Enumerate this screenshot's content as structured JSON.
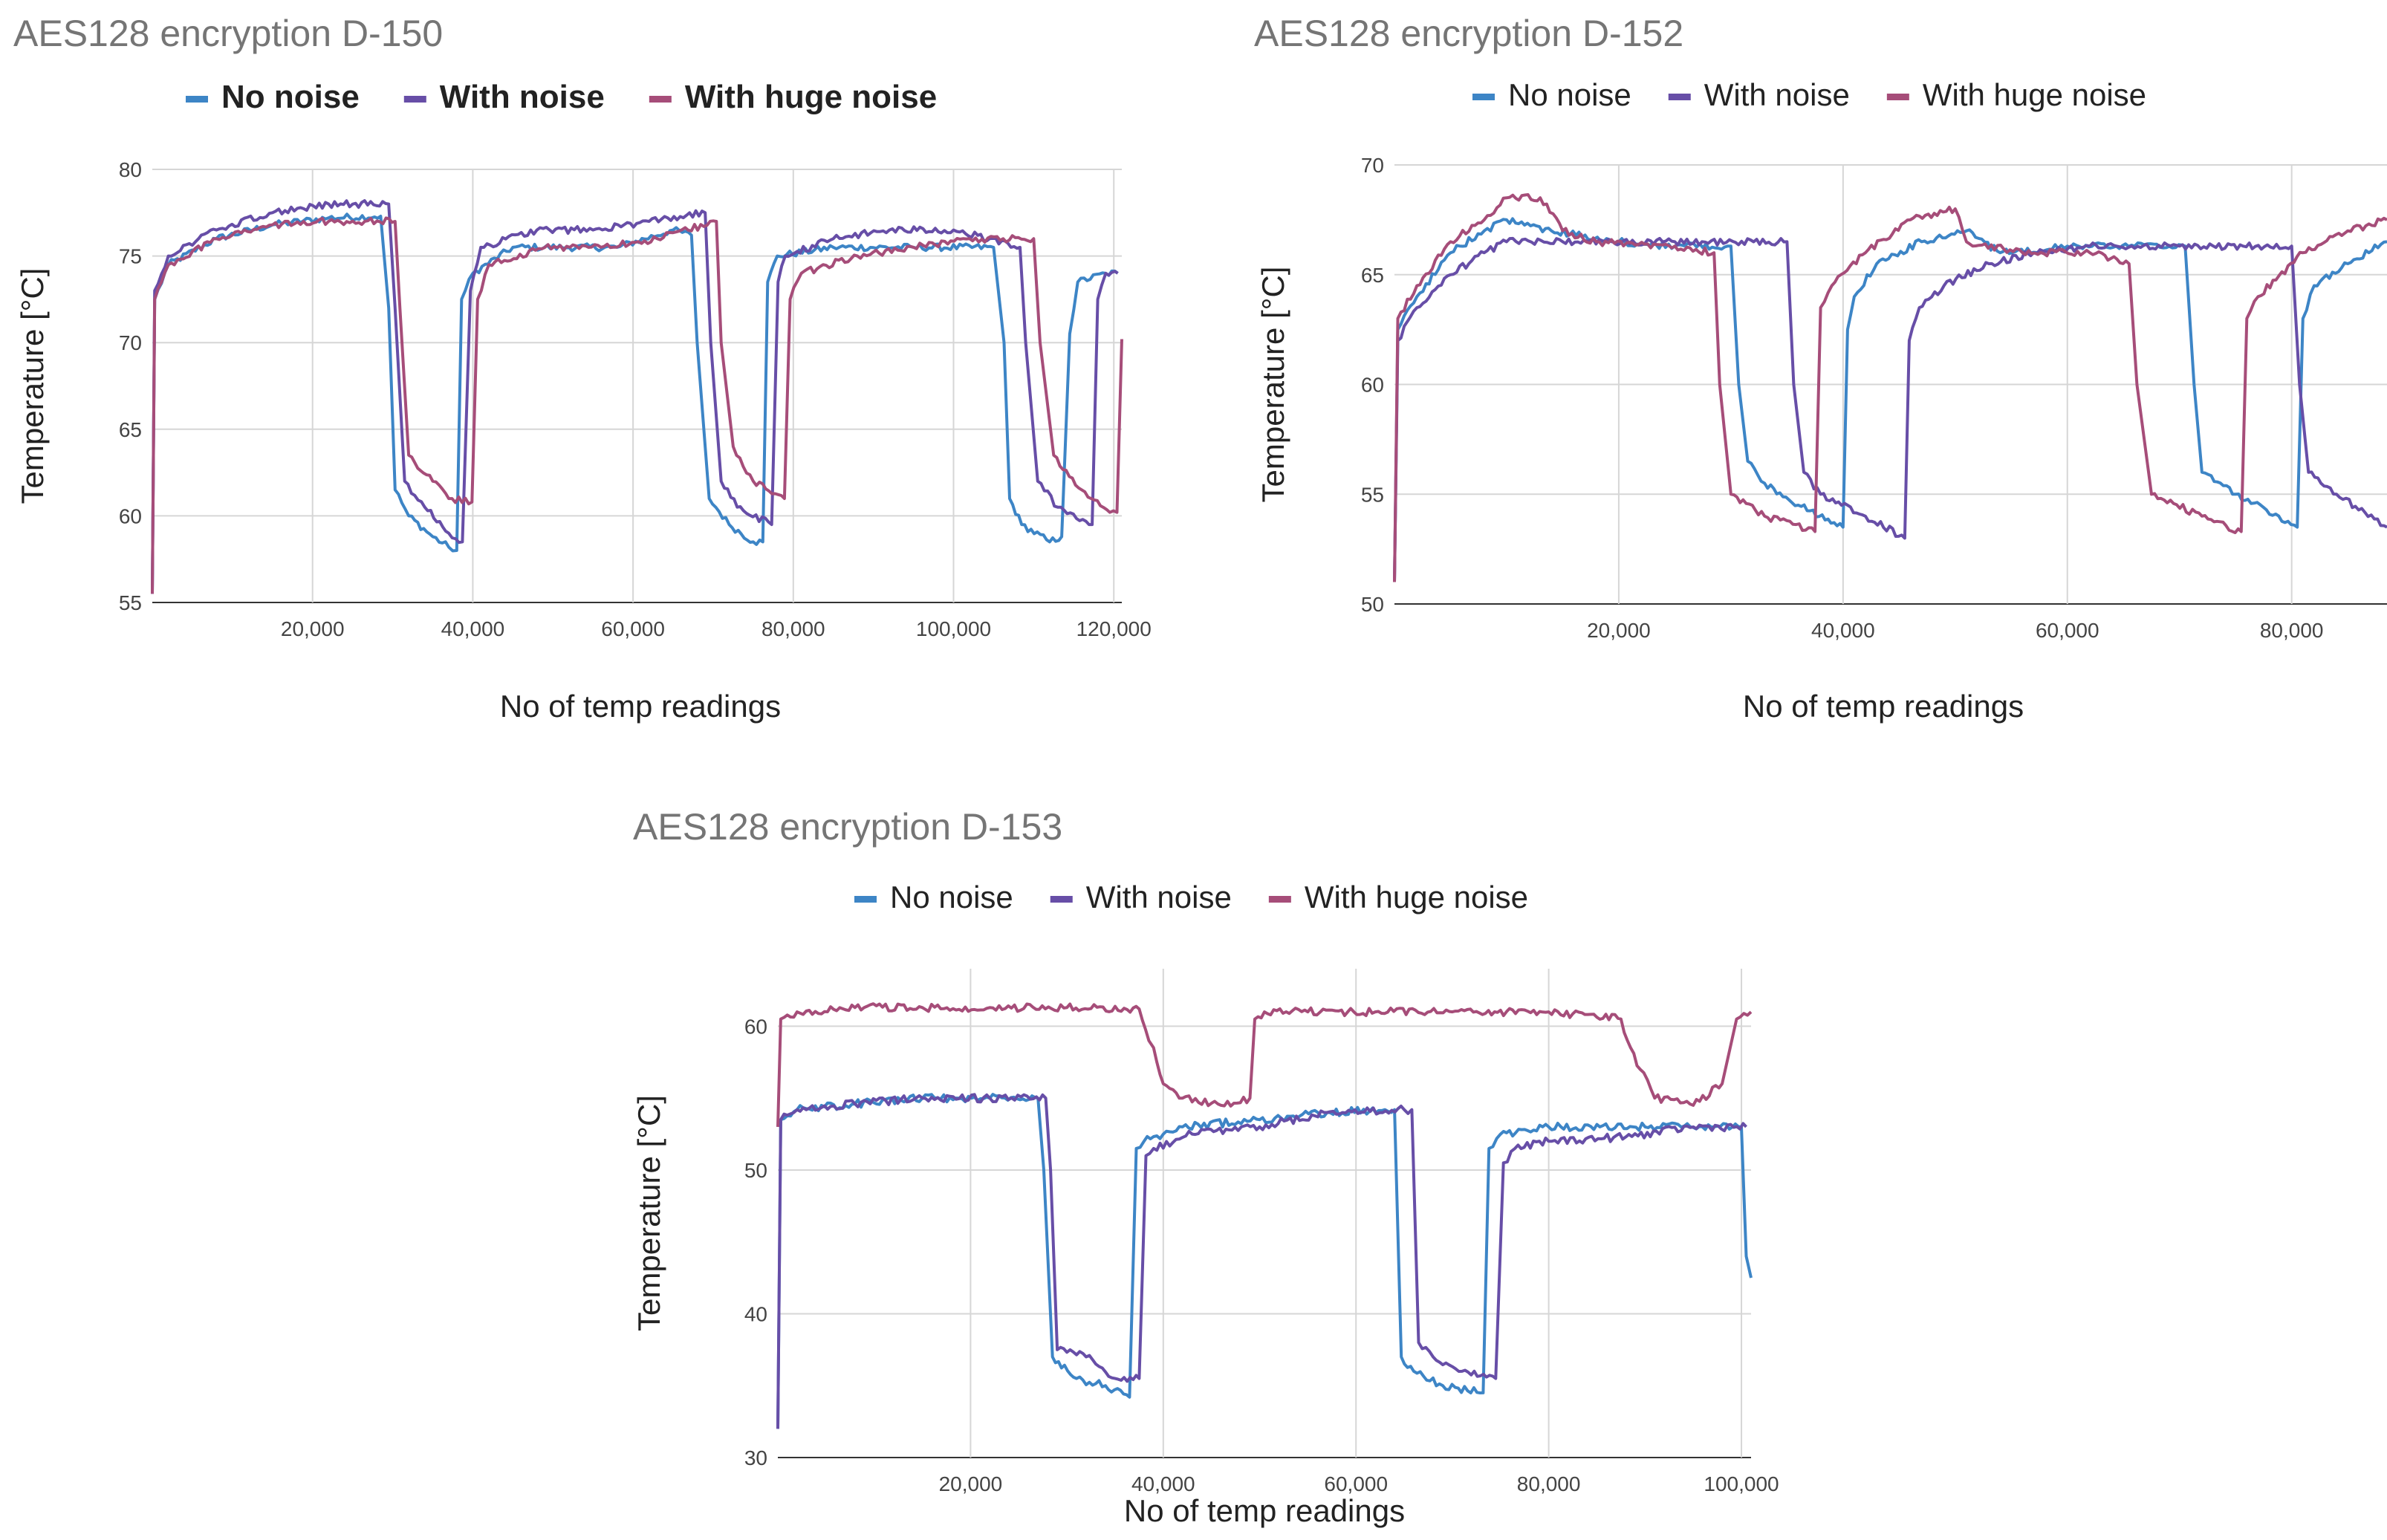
{
  "chart_data": [
    {
      "type": "line",
      "title": "AES128 encryption D-150",
      "xlabel": "No of temp readings",
      "ylabel": "Temperature [°C]",
      "legend_position": "top",
      "legend_bold": true,
      "xlim": [
        0,
        121000
      ],
      "ylim": [
        55,
        80
      ],
      "xticks": [
        20000,
        40000,
        60000,
        80000,
        100000,
        120000
      ],
      "xtick_labels": [
        "20,000",
        "40,000",
        "60,000",
        "80,000",
        "100,000",
        "120,000"
      ],
      "yticks": [
        55,
        60,
        65,
        70,
        75,
        80
      ],
      "ytick_labels": [
        "55",
        "60",
        "65",
        "70",
        "75",
        "80"
      ],
      "series": [
        {
          "name": "No noise",
          "color": "#3d85c6",
          "x": [
            0,
            300,
            2000,
            8000,
            15000,
            22000,
            28500,
            29500,
            30300,
            32000,
            35000,
            37000,
            38000,
            38600,
            40000,
            45000,
            52000,
            58000,
            65000,
            67300,
            68000,
            69500,
            72000,
            75000,
            76200,
            76800,
            78000,
            85000,
            95000,
            105000,
            106300,
            107000,
            108500,
            112000,
            113500,
            114500,
            115500,
            119000,
            120500
          ],
          "y": [
            55.5,
            72.5,
            74.5,
            76,
            76.8,
            77.2,
            77.3,
            72,
            61.5,
            60,
            58.8,
            58.2,
            58,
            72.5,
            74,
            75.5,
            75.5,
            75.5,
            76.5,
            76.2,
            70,
            61,
            59.5,
            58.5,
            58.5,
            73.5,
            75,
            75.5,
            75.5,
            75.5,
            70,
            61,
            59.5,
            58.5,
            58.8,
            70.5,
            73.5,
            74,
            74
          ]
        },
        {
          "name": "With noise",
          "color": "#674ea7",
          "x": [
            0,
            300,
            2000,
            8000,
            15000,
            22000,
            29500,
            30300,
            31500,
            34000,
            37000,
            38700,
            39700,
            41000,
            48000,
            55000,
            62000,
            69000,
            69700,
            71000,
            73000,
            77300,
            78100,
            79000,
            85000,
            92000,
            100000,
            108300,
            109000,
            110500,
            113000,
            117300,
            118000,
            119000,
            120500
          ],
          "y": [
            55.5,
            73,
            75,
            76.5,
            77.5,
            78,
            78,
            72,
            62,
            60.5,
            59,
            58.5,
            73,
            75.5,
            76.5,
            76.5,
            77,
            77.5,
            70,
            62,
            60.5,
            59.5,
            73.5,
            75,
            76,
            76.5,
            76.5,
            75.5,
            70,
            62,
            60.5,
            59.5,
            72.5,
            74,
            74
          ]
        },
        {
          "name": "With huge noise",
          "color": "#a64d79",
          "x": [
            0,
            300,
            2000,
            8000,
            15000,
            22000,
            30300,
            30900,
            32000,
            35000,
            37000,
            39900,
            40600,
            42000,
            49000,
            56000,
            63000,
            70400,
            71000,
            72500,
            75000,
            78900,
            79600,
            81000,
            88000,
            95000,
            102000,
            110000,
            110800,
            112500,
            116000,
            119500,
            120400,
            121000
          ],
          "y": [
            55.5,
            72.5,
            74.5,
            76,
            76.8,
            77,
            77,
            72,
            63.5,
            62,
            61,
            60.8,
            72.5,
            74.5,
            75.5,
            75.5,
            76,
            77,
            70,
            64,
            62,
            61,
            72.5,
            74,
            75,
            75.5,
            76,
            76,
            70,
            63.5,
            61.5,
            60.2,
            60.2,
            70.2
          ]
        }
      ]
    },
    {
      "type": "line",
      "title": "AES128 encryption D-152",
      "xlabel": "No of temp readings",
      "ylabel": "Temperature [°C]",
      "legend_position": "top",
      "legend_bold": false,
      "xlim": [
        0,
        88500
      ],
      "ylim": [
        50,
        70
      ],
      "xticks": [
        20000,
        40000,
        60000,
        80000
      ],
      "xtick_labels": [
        "20,000",
        "40,000",
        "60,000",
        "80,000"
      ],
      "yticks": [
        50,
        55,
        60,
        65,
        70
      ],
      "ytick_labels": [
        "50",
        "55",
        "60",
        "65",
        "70"
      ],
      "series": [
        {
          "name": "No noise",
          "color": "#3d85c6",
          "x": [
            0,
            300,
            2000,
            5000,
            8000,
            10000,
            14000,
            20000,
            25000,
            30000,
            30700,
            31500,
            33000,
            36000,
            40000,
            40400,
            41000,
            43000,
            47000,
            51000,
            54000,
            60000,
            66000,
            70500,
            71300,
            72000,
            75000,
            80500,
            81000,
            82000,
            85000,
            88500
          ],
          "y": [
            51,
            62.5,
            64,
            66,
            67,
            67.5,
            67,
            66.5,
            66.3,
            66.3,
            60,
            56.5,
            55.5,
            54.5,
            53.5,
            62.5,
            64,
            65.5,
            66.5,
            67,
            66,
            66.3,
            66.3,
            66.3,
            60,
            56,
            55,
            53.5,
            63,
            64.5,
            65.5,
            66.5
          ]
        },
        {
          "name": "With noise",
          "color": "#674ea7",
          "x": [
            0,
            300,
            2000,
            5000,
            8000,
            10000,
            15000,
            25000,
            35000,
            35600,
            36500,
            38000,
            42000,
            45500,
            45900,
            46800,
            49000,
            53000,
            57000,
            62000,
            70000,
            80000,
            80700,
            81500,
            84000,
            88500
          ],
          "y": [
            51,
            62,
            63.5,
            65,
            66,
            66.5,
            66.5,
            66.5,
            66.5,
            60,
            56,
            55,
            54,
            53,
            62,
            63.5,
            64.5,
            65.5,
            66,
            66.3,
            66.3,
            66.3,
            60,
            56,
            55,
            53.5
          ]
        },
        {
          "name": "With huge noise",
          "color": "#a64d79",
          "x": [
            0,
            300,
            2000,
            5000,
            8000,
            10000,
            13000,
            15000,
            18000,
            25000,
            28500,
            29000,
            30000,
            33000,
            37500,
            38000,
            39000,
            42000,
            46000,
            50000,
            51000,
            56000,
            62000,
            65500,
            66200,
            67500,
            72000,
            75500,
            76000,
            77000,
            81000,
            85000,
            88500
          ],
          "y": [
            51,
            63,
            64.5,
            66.5,
            67.5,
            68.5,
            68.5,
            67,
            66.5,
            66.3,
            66,
            60,
            55,
            54,
            53.3,
            63.5,
            64.5,
            66,
            67.5,
            68,
            66.5,
            66,
            66,
            65.5,
            60,
            55,
            54,
            53.3,
            63,
            64,
            66,
            67,
            67.5
          ]
        }
      ]
    },
    {
      "type": "line",
      "title": "AES128 encryption D-153",
      "xlabel": "No of temp readings",
      "ylabel": "Temperature [°C]",
      "legend_position": "top",
      "legend_bold": false,
      "xlim": [
        0,
        101000
      ],
      "ylim": [
        30,
        64
      ],
      "xticks": [
        20000,
        40000,
        60000,
        80000,
        100000
      ],
      "xtick_labels": [
        "20,000",
        "40,000",
        "60,000",
        "80,000",
        "100,000"
      ],
      "yticks": [
        30,
        40,
        50,
        60
      ],
      "ytick_labels": [
        "30",
        "40",
        "50",
        "60"
      ],
      "series": [
        {
          "name": "No noise",
          "color": "#3d85c6",
          "x": [
            0,
            300,
            2000,
            8000,
            15000,
            22000,
            27000,
            27600,
            28500,
            31000,
            34000,
            36500,
            37200,
            38000,
            42000,
            50000,
            57000,
            63000,
            64000,
            64700,
            66000,
            69000,
            73200,
            73800,
            75000,
            80000,
            90000,
            100000,
            100500,
            101000
          ],
          "y": [
            32,
            53.5,
            54.2,
            54.6,
            55,
            55,
            55,
            50,
            37,
            35.5,
            35,
            34.2,
            51.5,
            52,
            53,
            53.5,
            54,
            54.2,
            54.2,
            37,
            36,
            35,
            34.5,
            51.5,
            52.5,
            53,
            53,
            53,
            44,
            42.5
          ]
        },
        {
          "name": "With noise",
          "color": "#674ea7",
          "x": [
            0,
            300,
            2000,
            8000,
            15000,
            22000,
            27800,
            28300,
            29000,
            32000,
            35000,
            37500,
            38200,
            39000,
            43000,
            50000,
            57000,
            65000,
            65800,
            66500,
            68000,
            71000,
            74500,
            75300,
            76500,
            80000,
            88000,
            95000,
            100500
          ],
          "y": [
            32,
            53.5,
            54.2,
            54.6,
            55,
            55,
            55,
            50,
            37.5,
            37,
            35.5,
            35.5,
            51,
            51.5,
            52.5,
            53,
            54,
            54.2,
            54.2,
            38,
            37,
            36,
            35.5,
            50.5,
            51.5,
            52,
            52.3,
            53,
            53
          ]
        },
        {
          "name": "With huge noise",
          "color": "#a64d79",
          "x": [
            0,
            300,
            2000,
            8000,
            15000,
            22000,
            30000,
            37500,
            38500,
            39000,
            40000,
            42000,
            46000,
            49000,
            49500,
            50500,
            55000,
            62000,
            70000,
            80000,
            87500,
            88500,
            89500,
            91000,
            95000,
            98000,
            99500,
            101000
          ],
          "y": [
            53,
            60.5,
            61,
            61.3,
            61.3,
            61.3,
            61.3,
            61.2,
            59,
            58.5,
            56,
            55,
            54.5,
            55,
            60.5,
            61,
            61,
            61,
            61,
            61,
            60.5,
            58.5,
            57,
            55,
            54.5,
            56,
            60.5,
            61
          ]
        }
      ]
    }
  ]
}
